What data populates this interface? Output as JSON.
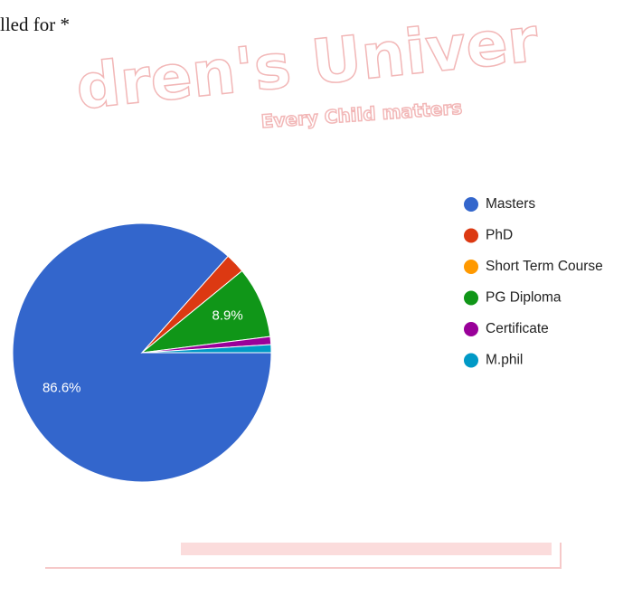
{
  "question": "lled for *",
  "watermark": {
    "title": "dren's Univer",
    "motto": "Every Child matters"
  },
  "chart_data": {
    "type": "pie",
    "categories": [
      "Masters",
      "PhD",
      "Short Term Course",
      "PG Diploma",
      "Certificate",
      "M.phil"
    ],
    "values": [
      86.6,
      2.5,
      0,
      8.9,
      1.0,
      1.0
    ],
    "value_labels": [
      "86.6%",
      null,
      null,
      "8.9%",
      null,
      null
    ],
    "colors": [
      "#3366cc",
      "#dc3912",
      "#ff9900",
      "#109618",
      "#990099",
      "#0099c6"
    ],
    "legend": "right"
  }
}
